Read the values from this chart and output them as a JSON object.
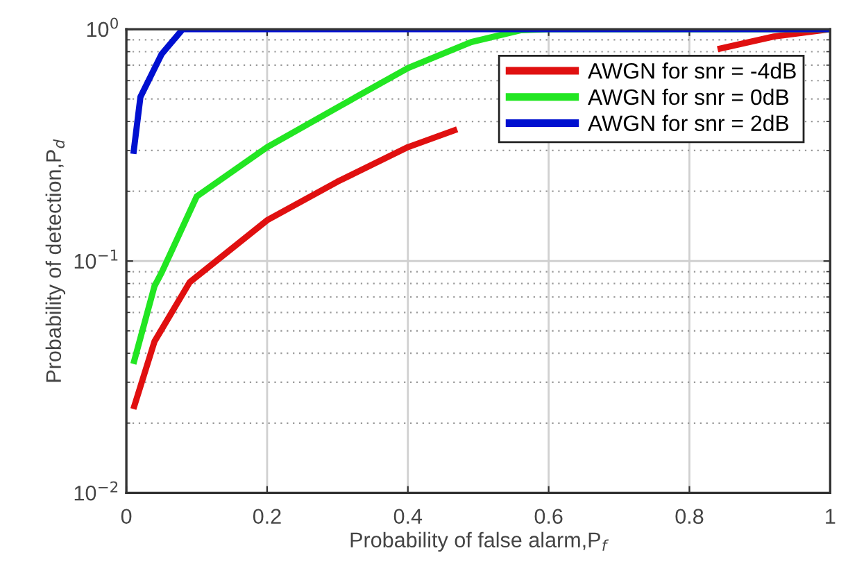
{
  "chart_data": {
    "type": "line",
    "xlabel": "Probability of false alarm,P$_{f}$",
    "ylabel": "Probability of detection,P$_{d}$",
    "log": "y",
    "xlim": [
      0,
      1
    ],
    "ylim": [
      0.01,
      1
    ],
    "xticks": [
      0,
      0.2,
      0.4,
      0.6,
      0.8,
      1
    ],
    "yticks": [
      {
        "value": 0.01,
        "label": "10$^{−2}$"
      },
      {
        "value": 0.1,
        "label": "10$^{−1}$"
      },
      {
        "value": 1,
        "label": "10$^{0}$"
      }
    ],
    "grid": true,
    "legend": "top right",
    "marker": "none",
    "line_style": "solid",
    "series": [
      {
        "name": "AWGN for snr = -4dB",
        "color": "#e01010",
        "x": [
          0.01,
          0.04,
          0.09,
          0.2,
          0.3,
          0.4,
          0.47,
          0.6,
          0.84,
          0.92,
          1
        ],
        "values": [
          0.023,
          0.045,
          0.081,
          0.15,
          0.22,
          0.31,
          0.37,
          null,
          0.82,
          0.93,
          1
        ]
      },
      {
        "name": "AWGN for snr = 0dB",
        "color": "#22e622",
        "x": [
          0.01,
          0.04,
          0.05,
          0.1,
          0.2,
          0.3,
          0.4,
          0.49,
          0.56,
          0.6,
          1
        ],
        "values": [
          0.036,
          0.078,
          0.089,
          0.19,
          0.31,
          0.46,
          0.68,
          0.88,
          0.99,
          1,
          1
        ]
      },
      {
        "name": "AWGN for snr = 2dB",
        "color": "#0010d0",
        "x": [
          0.01,
          0.02,
          0.05,
          0.08,
          1
        ],
        "values": [
          0.29,
          0.51,
          0.78,
          1,
          1
        ]
      }
    ]
  }
}
